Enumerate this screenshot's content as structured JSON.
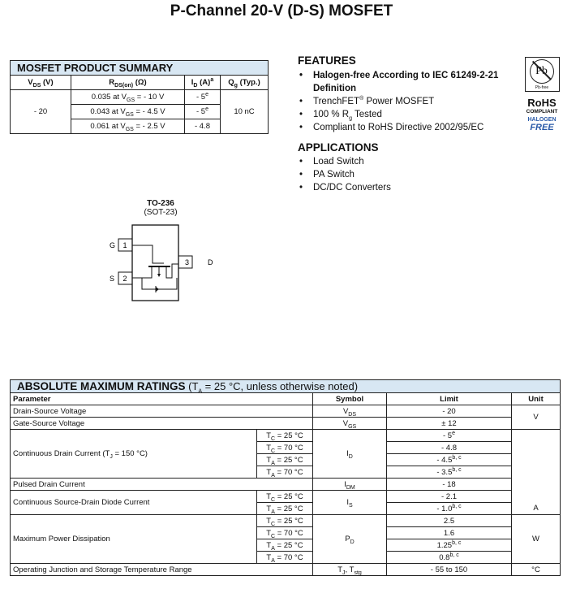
{
  "title": "P-Channel 20-V (D-S) MOSFET",
  "summary": {
    "heading": "MOSFET PRODUCT SUMMARY",
    "headers": {
      "vds": "V",
      "vds_sub": "DS",
      "vds_unit": " (V)",
      "rds": "R",
      "rds_sub": "DS(on)",
      "rds_unit": " (Ω)",
      "id": "I",
      "id_sub": "D",
      "id_unit": " (A)",
      "id_sup": "a",
      "qg": "Q",
      "qg_sub": "g",
      "qg_unit": " (Typ.)"
    },
    "vds": "- 20",
    "qg": "10 nC",
    "rows": [
      {
        "r": "0.035 at V",
        "r_sub": "GS",
        "r_tail": " = - 10 V",
        "id": "- 5",
        "id_sup": "e"
      },
      {
        "r": "0.043 at V",
        "r_sub": "GS",
        "r_tail": " = - 4.5 V",
        "id": "- 5",
        "id_sup": "e"
      },
      {
        "r": "0.061 at V",
        "r_sub": "GS",
        "r_tail": " = - 2.5 V",
        "id": "- 4.8",
        "id_sup": ""
      }
    ]
  },
  "features": {
    "heading": "FEATURES",
    "items": [
      {
        "text": "Halogen-free According to IEC 61249-2-21 Definition",
        "bold": true
      },
      {
        "text": "TrenchFET",
        "sup": "®",
        "tail": " Power MOSFET"
      },
      {
        "text": "100 % R",
        "sub": "g",
        "tail": " Tested"
      },
      {
        "text": "Compliant to RoHS Directive 2002/95/EC"
      }
    ]
  },
  "applications": {
    "heading": "APPLICATIONS",
    "items": [
      "Load Switch",
      "PA Switch",
      "DC/DC Converters"
    ]
  },
  "badges": {
    "pb": "Pb",
    "pb_free": "Pb-free",
    "rohs": "RoHS",
    "compliant": "COMPLIANT",
    "halogen": "HALOGEN",
    "free": "FREE",
    "halogen_color": "#2a5aa8"
  },
  "package": {
    "name": "TO-236",
    "alt": "(SOT-23)",
    "pins": [
      {
        "num": "1",
        "label": "G"
      },
      {
        "num": "2",
        "label": "S"
      },
      {
        "num": "3",
        "label": "D"
      }
    ]
  },
  "amr": {
    "heading": "ABSOLUTE MAXIMUM RATINGS",
    "cond_pre": " (T",
    "cond_sub": "A",
    "cond_tail": " = 25 °C, unless otherwise noted)",
    "headers": [
      "Parameter",
      "Symbol",
      "Limit",
      "Unit"
    ],
    "groups": [
      {
        "param": "Drain-Source Voltage",
        "sym": "V",
        "sym_sub": "DS",
        "rows": [
          {
            "limit": "- 20"
          }
        ],
        "unit": "V",
        "unit_span": 2
      },
      {
        "param": "Gate-Source Voltage",
        "sym": "V",
        "sym_sub": "GS",
        "rows": [
          {
            "limit": "± 12"
          }
        ]
      },
      {
        "param": "Continuous Drain Current (T",
        "param_sub": "J",
        "param_tail": " = 150 °C)",
        "sym": "I",
        "sym_sub": "D",
        "rows": [
          {
            "c": "T",
            "c_sub": "C",
            "c_tail": " = 25 °C",
            "limit": "- 5",
            "sup": "e"
          },
          {
            "c": "T",
            "c_sub": "C",
            "c_tail": " = 70 °C",
            "limit": "- 4.8"
          },
          {
            "c": "T",
            "c_sub": "A",
            "c_tail": " = 25 °C",
            "limit": "- 4.5",
            "sup": "b, c"
          },
          {
            "c": "T",
            "c_sub": "A",
            "c_tail": " = 70 °C",
            "limit": "- 3.5",
            "sup": "b, c"
          }
        ],
        "unit": "A",
        "unit_span": 7
      },
      {
        "param": "Pulsed Drain Current",
        "sym": "I",
        "sym_sub": "DM",
        "rows": [
          {
            "limit": "- 18"
          }
        ]
      },
      {
        "param": "Continuous Source-Drain Diode Current",
        "sym": "I",
        "sym_sub": "S",
        "rows": [
          {
            "c": "T",
            "c_sub": "C",
            "c_tail": " = 25 °C",
            "limit": "- 2.1"
          },
          {
            "c": "T",
            "c_sub": "A",
            "c_tail": " = 25 °C",
            "limit": "- 1.0",
            "sup": "b, c"
          }
        ]
      },
      {
        "param": "Maximum Power Dissipation",
        "sym": "P",
        "sym_sub": "D",
        "rows": [
          {
            "c": "T",
            "c_sub": "C",
            "c_tail": " = 25 °C",
            "limit": "2.5"
          },
          {
            "c": "T",
            "c_sub": "C",
            "c_tail": " = 70 °C",
            "limit": "1.6"
          },
          {
            "c": "T",
            "c_sub": "A",
            "c_tail": " = 25 °C",
            "limit": "1.25",
            "sup": "b, c"
          },
          {
            "c": "T",
            "c_sub": "A",
            "c_tail": " = 70 °C",
            "limit": "0.8",
            "sup": "b, c"
          }
        ],
        "unit": "W",
        "unit_span": 4
      },
      {
        "param": "Operating Junction and Storage Temperature Range",
        "sym": "T",
        "sym_sub": "J",
        "sym_tail": ", T",
        "sym_sub2": "stg",
        "rows": [
          {
            "limit": "- 55 to 150"
          }
        ],
        "unit": "°C",
        "unit_span": 1
      }
    ]
  }
}
